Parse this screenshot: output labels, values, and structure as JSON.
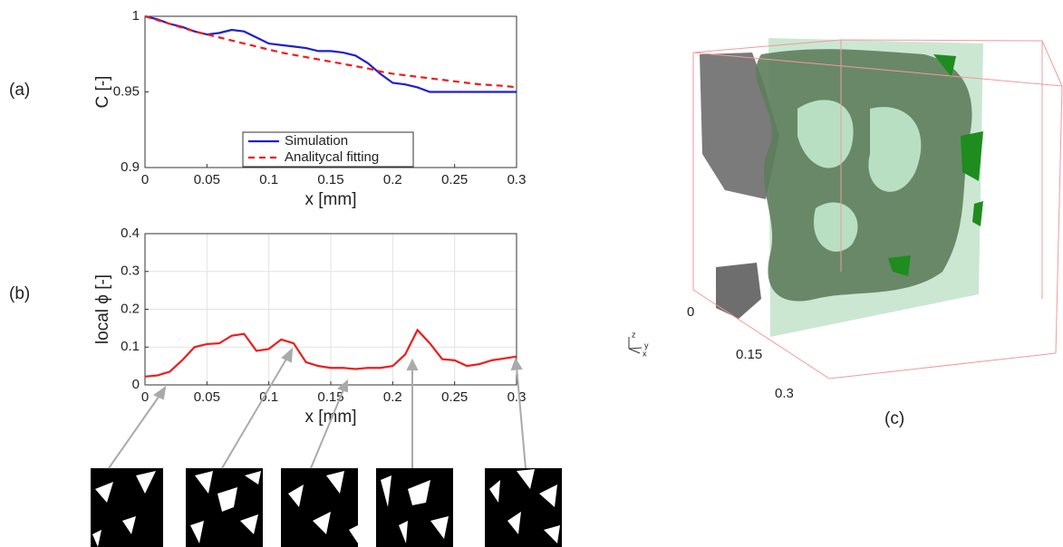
{
  "chart_data": [
    {
      "type": "line",
      "xlabel": "x [mm]",
      "ylabel": "C [-]",
      "x": [
        0,
        0.01,
        0.02,
        0.03,
        0.04,
        0.05,
        0.06,
        0.07,
        0.08,
        0.09,
        0.1,
        0.11,
        0.12,
        0.13,
        0.14,
        0.15,
        0.16,
        0.17,
        0.18,
        0.19,
        0.2,
        0.21,
        0.22,
        0.23,
        0.24,
        0.25,
        0.26,
        0.27,
        0.28,
        0.29,
        0.3
      ],
      "series": [
        {
          "name": "Simulation",
          "color": "#1f1fd0",
          "values": [
            1,
            0.998,
            0.995,
            0.993,
            0.99,
            0.988,
            0.989,
            0.991,
            0.99,
            0.986,
            0.982,
            0.981,
            0.98,
            0.979,
            0.977,
            0.977,
            0.976,
            0.974,
            0.969,
            0.962,
            0.956,
            0.955,
            0.953,
            0.95,
            0.95,
            0.95,
            0.95,
            0.95,
            0.95,
            0.95,
            0.95
          ]
        },
        {
          "name": "Analitycal fitting",
          "color": "#ee1c1c",
          "dashed": true,
          "values": [
            1,
            0.9975,
            0.995,
            0.9925,
            0.99,
            0.988,
            0.986,
            0.984,
            0.982,
            0.98,
            0.978,
            0.976,
            0.9745,
            0.973,
            0.9715,
            0.97,
            0.9685,
            0.967,
            0.9655,
            0.9635,
            0.962,
            0.961,
            0.96,
            0.959,
            0.958,
            0.957,
            0.956,
            0.955,
            0.9545,
            0.954,
            0.953
          ]
        }
      ],
      "xlim": [
        0,
        0.3
      ],
      "xticks": [
        0,
        0.05,
        0.1,
        0.15,
        0.2,
        0.25,
        0.3
      ],
      "ylim": [
        0.9,
        1
      ],
      "yticks": [
        0.9,
        0.95,
        1
      ],
      "grid": false,
      "legend": "bottom-center"
    },
    {
      "type": "line",
      "xlabel": "x [mm]",
      "ylabel": "local ϕ [-]",
      "x": [
        0,
        0.01,
        0.02,
        0.03,
        0.04,
        0.05,
        0.06,
        0.07,
        0.08,
        0.09,
        0.1,
        0.11,
        0.12,
        0.13,
        0.14,
        0.15,
        0.16,
        0.17,
        0.18,
        0.19,
        0.2,
        0.21,
        0.22,
        0.23,
        0.24,
        0.25,
        0.26,
        0.27,
        0.28,
        0.29,
        0.3
      ],
      "values": [
        0.022,
        0.025,
        0.035,
        0.065,
        0.1,
        0.108,
        0.11,
        0.13,
        0.135,
        0.09,
        0.095,
        0.12,
        0.11,
        0.06,
        0.05,
        0.045,
        0.045,
        0.042,
        0.045,
        0.045,
        0.05,
        0.08,
        0.145,
        0.11,
        0.068,
        0.065,
        0.05,
        0.055,
        0.065,
        0.07,
        0.075
      ],
      "color": "#ee1c1c",
      "xlim": [
        0,
        0.3
      ],
      "xticks": [
        0,
        0.05,
        0.1,
        0.15,
        0.2,
        0.25,
        0.3
      ],
      "ylim": [
        0,
        0.4
      ],
      "yticks": [
        0,
        0.1,
        0.2,
        0.3,
        0.4
      ],
      "grid": true
    }
  ],
  "panel_labels": [
    "(a)",
    "(b)",
    "(c)"
  ],
  "cube_ticks": [
    "0",
    "0.15",
    "0.3"
  ],
  "orientation_axes": [
    "z",
    "x",
    "y"
  ]
}
